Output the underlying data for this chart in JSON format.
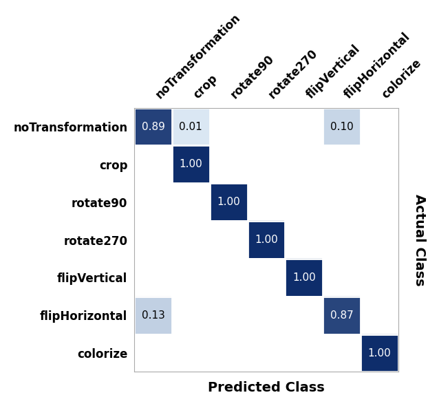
{
  "classes": [
    "noTransformation",
    "crop",
    "rotate90",
    "rotate270",
    "flipVertical",
    "flipHorizontal",
    "colorize"
  ],
  "matrix": [
    [
      0.89,
      0.01,
      0.0,
      0.0,
      0.0,
      0.1,
      0.0
    ],
    [
      0.0,
      1.0,
      0.0,
      0.0,
      0.0,
      0.0,
      0.0
    ],
    [
      0.0,
      0.0,
      1.0,
      0.0,
      0.0,
      0.0,
      0.0
    ],
    [
      0.0,
      0.0,
      0.0,
      1.0,
      0.0,
      0.0,
      0.0
    ],
    [
      0.0,
      0.0,
      0.0,
      0.0,
      1.0,
      0.0,
      0.0
    ],
    [
      0.13,
      0.0,
      0.0,
      0.0,
      0.0,
      0.87,
      0.0
    ],
    [
      0.0,
      0.0,
      0.0,
      0.0,
      0.0,
      0.0,
      1.0
    ]
  ],
  "show_values": [
    [
      0,
      0,
      0.89,
      "white"
    ],
    [
      0,
      1,
      0.01,
      "black"
    ],
    [
      0,
      5,
      0.1,
      "black"
    ],
    [
      1,
      1,
      1.0,
      "white"
    ],
    [
      2,
      2,
      1.0,
      "white"
    ],
    [
      3,
      3,
      1.0,
      "white"
    ],
    [
      4,
      4,
      1.0,
      "white"
    ],
    [
      5,
      0,
      0.13,
      "black"
    ],
    [
      5,
      5,
      0.87,
      "white"
    ],
    [
      6,
      6,
      1.0,
      "white"
    ]
  ],
  "colormap_low": "#dce9f5",
  "colormap_high": "#0e2d6b",
  "bg_color": "#ffffff",
  "xlabel": "Predicted Class",
  "ylabel": "Actual Class",
  "xlabel_fontsize": 14,
  "ylabel_fontsize": 14,
  "tick_fontsize": 12,
  "value_fontsize": 11
}
